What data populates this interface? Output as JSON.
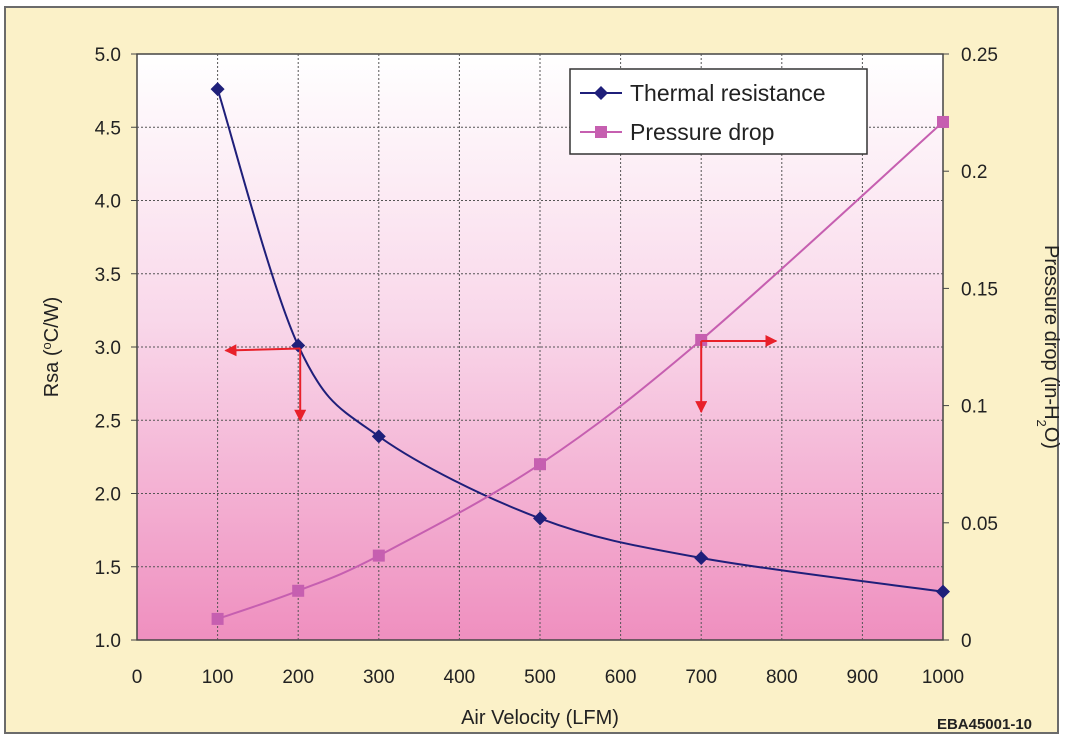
{
  "chart_data": {
    "type": "line",
    "xlabel": "Air Velocity (LFM)",
    "ylabel": "Rsa (°C/W)",
    "ylabel_parts": {
      "pre": "Rsa (",
      "sup": "o",
      "post": "C/W)"
    },
    "y2label": "Pressure drop (in-H2O)",
    "y2label_parts": {
      "pre": "Pressure drop (in-H",
      "sub": "2",
      "post": "O)"
    },
    "xlim": [
      0,
      1000
    ],
    "ylim": [
      1.0,
      5.0
    ],
    "y2lim": [
      0,
      0.25
    ],
    "x_ticks": [
      "0",
      "100",
      "200",
      "300",
      "400",
      "500",
      "600",
      "700",
      "800",
      "900",
      "1000"
    ],
    "y_ticks": [
      "1.0",
      "1.5",
      "2.0",
      "2.5",
      "3.0",
      "3.5",
      "4.0",
      "4.5",
      "5.0"
    ],
    "y2_ticks": [
      "0",
      "0.05",
      "0.1",
      "0.15",
      "0.2",
      "0.25"
    ],
    "grid": true,
    "legend_position": "top-right",
    "series": [
      {
        "name": "Thermal resistance",
        "axis": "left",
        "color": "#1f1f7a",
        "marker": "diamond",
        "x": [
          100,
          200,
          300,
          500,
          700,
          1000
        ],
        "y": [
          4.76,
          3.01,
          2.39,
          1.83,
          1.56,
          1.33
        ]
      },
      {
        "name": "Pressure drop",
        "axis": "right",
        "color": "#c65fb0",
        "marker": "square",
        "x": [
          100,
          200,
          300,
          500,
          700,
          1000
        ],
        "y": [
          0.009,
          0.021,
          0.036,
          0.075,
          0.128,
          0.221
        ]
      }
    ],
    "annotation_code": "EBA45001-10",
    "arrow_color": "#e8202a"
  }
}
